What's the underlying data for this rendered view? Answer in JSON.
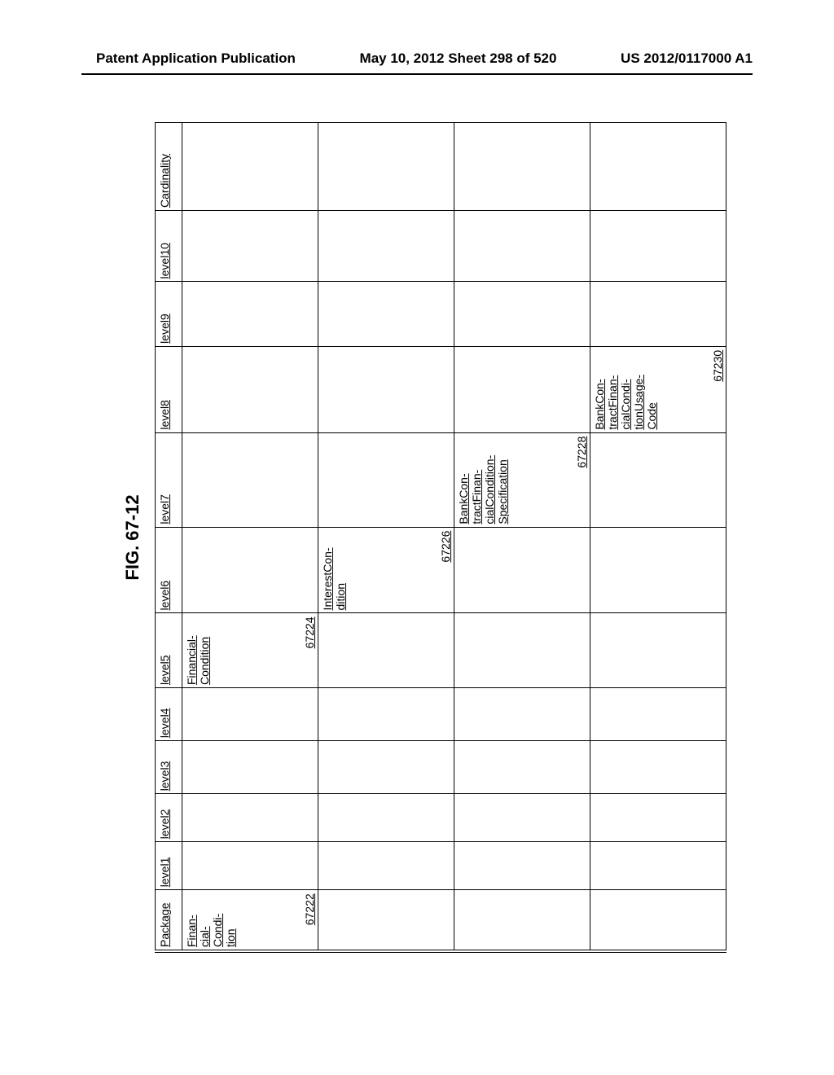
{
  "header": {
    "left": "Patent Application Publication",
    "center": "May 10, 2012  Sheet 298 of 520",
    "right": "US 2012/0117000 A1"
  },
  "figure": {
    "label": "FIG. 67-12",
    "columns": [
      "Package",
      "level1",
      "level2",
      "level3",
      "level4",
      "level5",
      "level6",
      "level7",
      "level8",
      "level9",
      "level10",
      "Cardinality"
    ],
    "rows": [
      {
        "Package": {
          "label": "Finan-\ncial-\nCondi-\ntion",
          "ref": "67222"
        },
        "level5": {
          "label": "Financial-\nCondition",
          "ref": "67224"
        }
      },
      {
        "level6": {
          "label": "InterestCon-\ndition",
          "ref": "67226"
        }
      },
      {
        "level7": {
          "label": "BankCon-\ntractFinan-\ncialCondition-\nSpecification",
          "ref": "67228"
        }
      },
      {
        "level8": {
          "label": "BankCon-\ntractFinan-\ncialCondi-\ntionUsage-\nCode",
          "ref": "67230"
        }
      }
    ]
  }
}
